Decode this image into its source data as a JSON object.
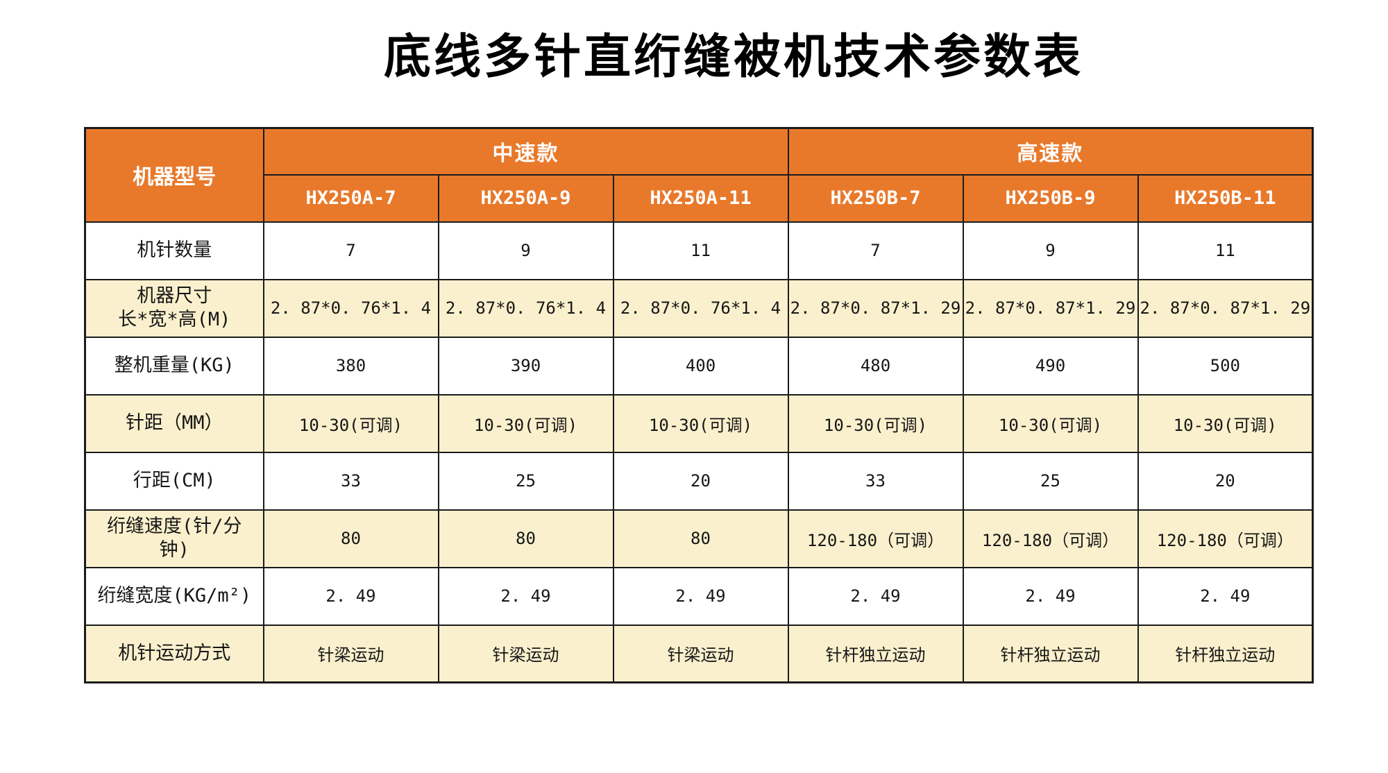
{
  "title": "底线多针直绗缝被机技术参数表",
  "colors": {
    "header_bg": "#E8792B",
    "alt_row_bg": "#FAF0CD",
    "border": "#1B1B1B",
    "header_text": "#FFFFFF",
    "body_text": "#161616"
  },
  "table": {
    "corner_label": "机器型号",
    "groups": [
      {
        "label": "中速款",
        "span": 3
      },
      {
        "label": "高速款",
        "span": 3
      }
    ],
    "models": [
      "HX250A-7",
      "HX250A-9",
      "HX250A-11",
      "HX250B-7",
      "HX250B-9",
      "HX250B-11"
    ],
    "rows": [
      {
        "label": "机针数量",
        "values": [
          "7",
          "9",
          "11",
          "7",
          "9",
          "11"
        ]
      },
      {
        "label": "机器尺寸",
        "label2": "长*宽*高(M)",
        "values": [
          "2. 87*0. 76*1. 4",
          "2. 87*0. 76*1. 4",
          "2. 87*0. 76*1. 4",
          "2. 87*0. 87*1. 29",
          "2. 87*0. 87*1. 29",
          "2. 87*0. 87*1. 29"
        ]
      },
      {
        "label": "整机重量(KG)",
        "values": [
          "380",
          "390",
          "400",
          "480",
          "490",
          "500"
        ]
      },
      {
        "label": "针距（MM）",
        "values": [
          "10-30(可调)",
          "10-30(可调)",
          "10-30(可调)",
          "10-30(可调)",
          "10-30(可调)",
          "10-30(可调)"
        ]
      },
      {
        "label": "行距(CM)",
        "values": [
          "33",
          "25",
          "20",
          "33",
          "25",
          "20"
        ]
      },
      {
        "label": "绗缝速度(针/分",
        "label2": "钟)",
        "values": [
          "80",
          "80",
          "80",
          "120-180（可调）",
          "120-180（可调）",
          "120-180（可调）"
        ]
      },
      {
        "label": "绗缝宽度(KG/m²)",
        "values": [
          "2. 49",
          "2. 49",
          "2. 49",
          "2. 49",
          "2. 49",
          "2. 49"
        ]
      },
      {
        "label": "机针运动方式",
        "values": [
          "针梁运动",
          "针梁运动",
          "针梁运动",
          "针杆独立运动",
          "针杆独立运动",
          "针杆独立运动"
        ]
      }
    ]
  }
}
